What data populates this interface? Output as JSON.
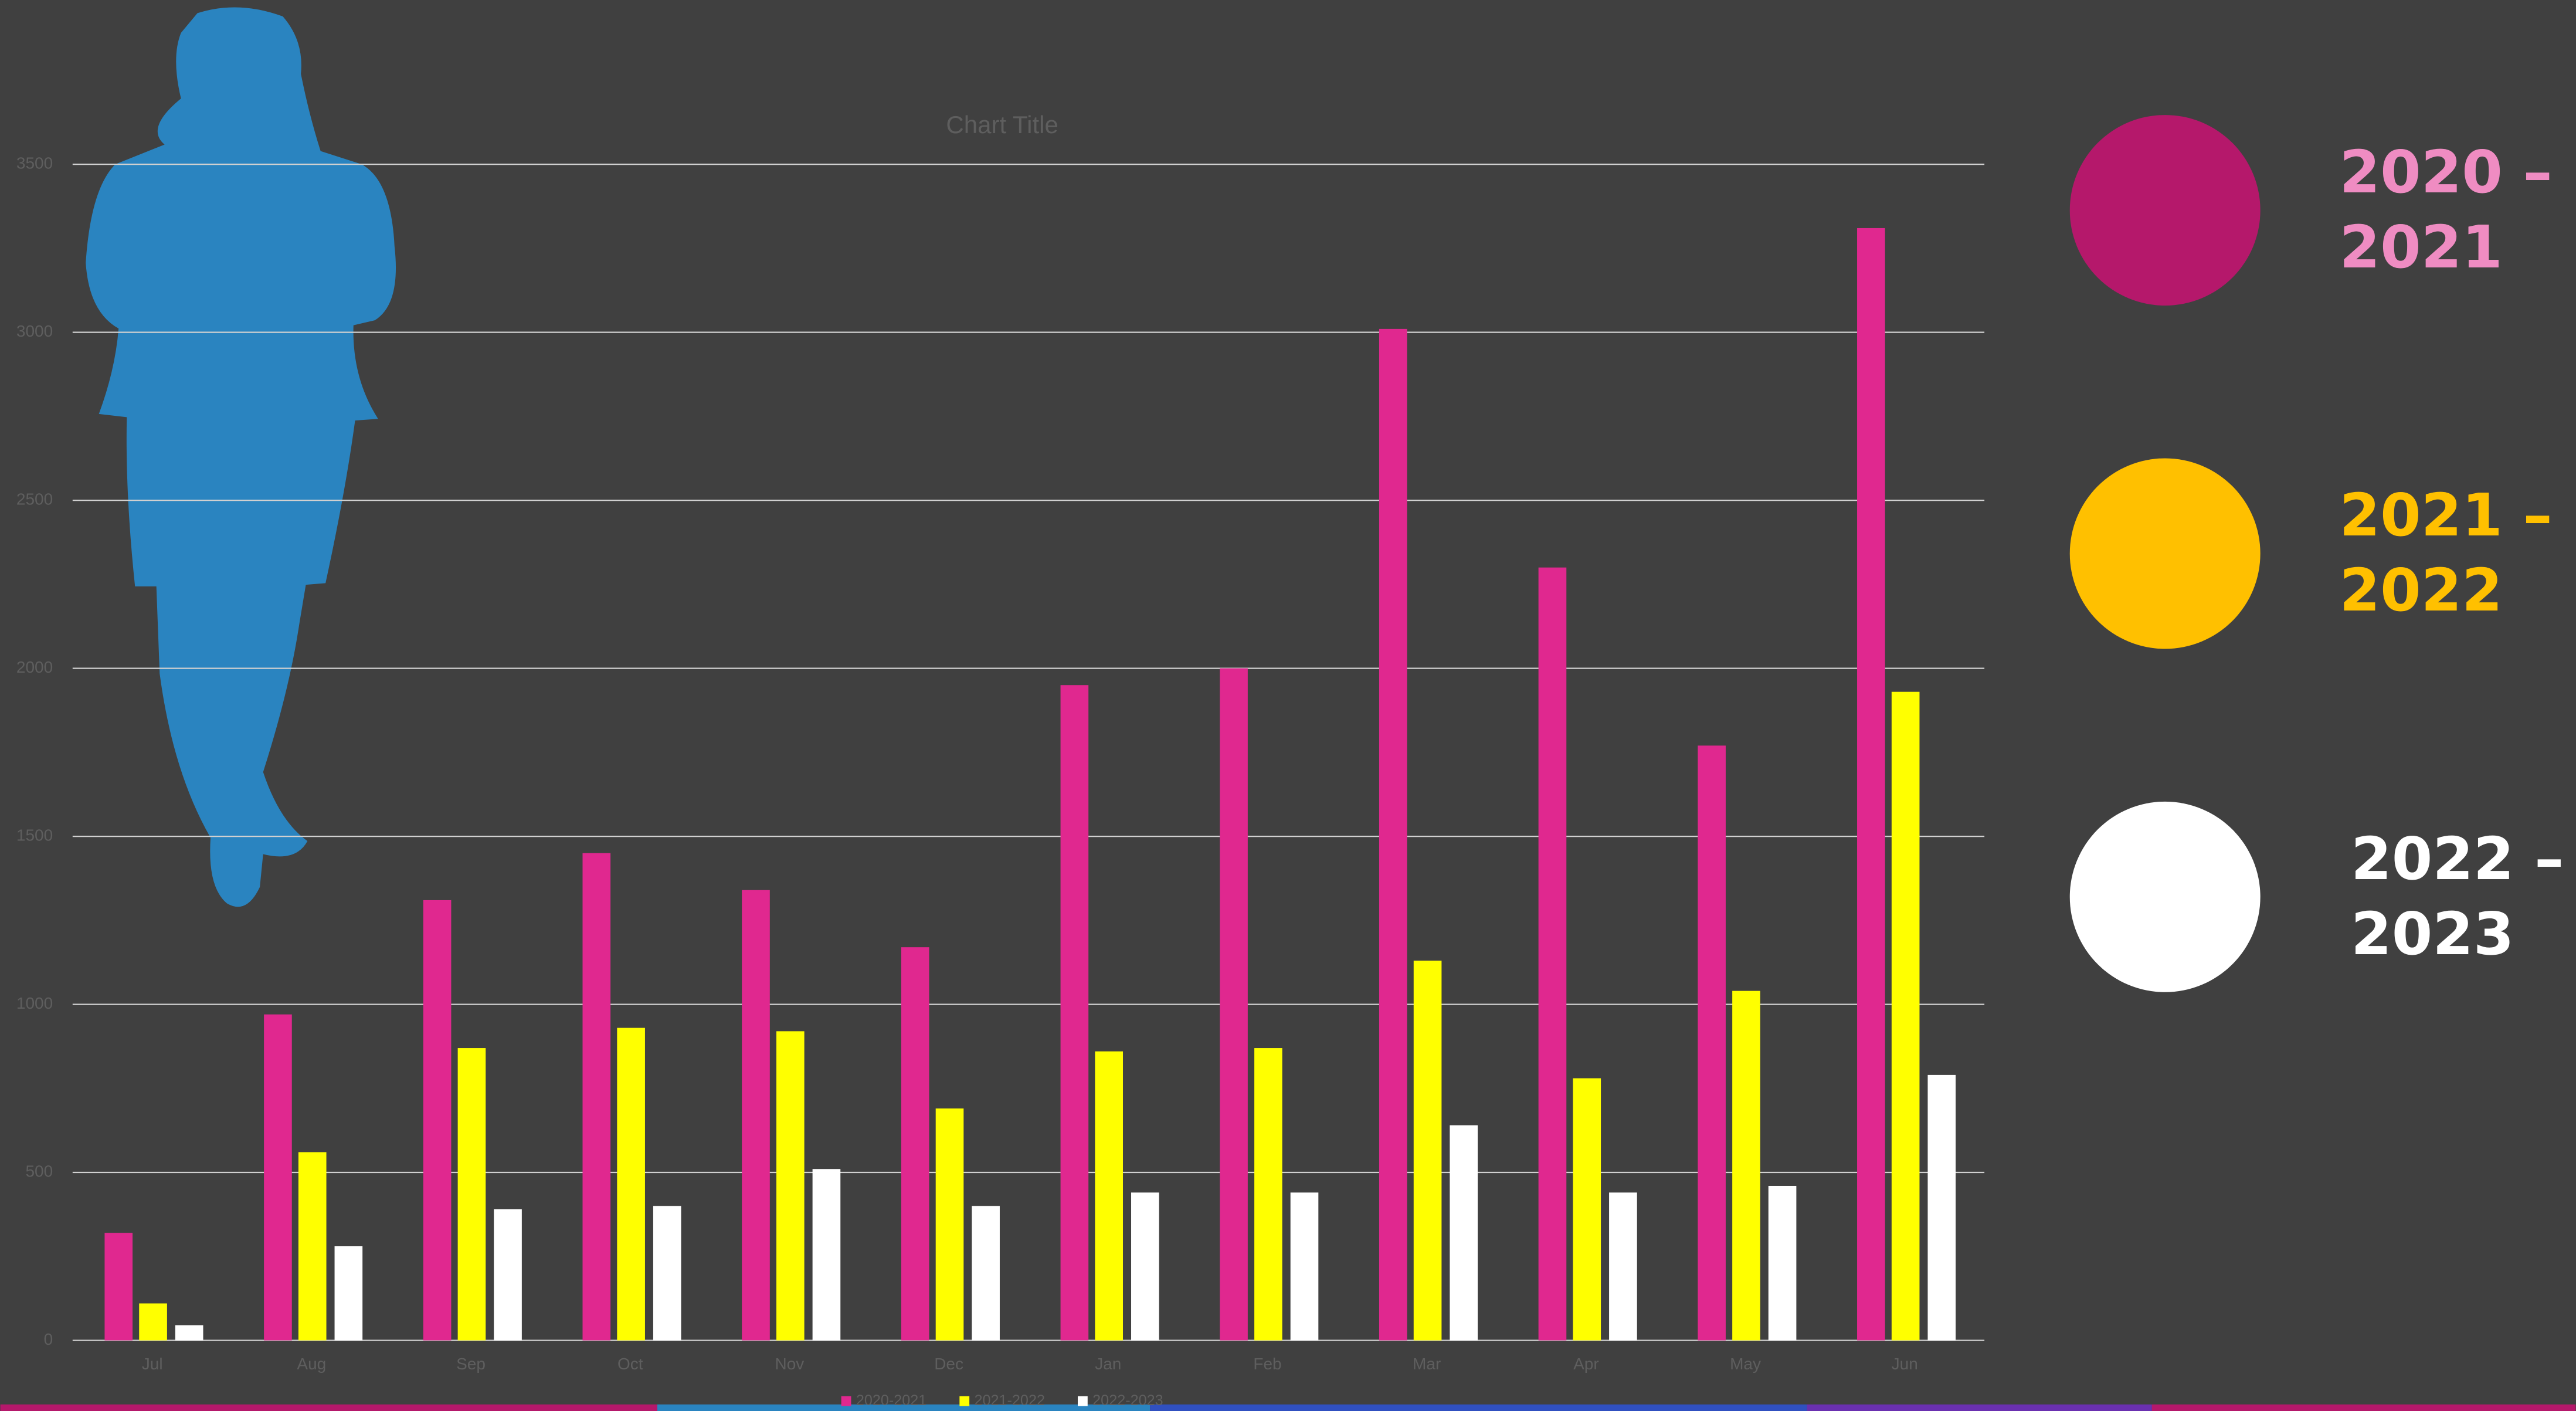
{
  "chart_data": {
    "type": "bar",
    "title": "Chart Title",
    "categories": [
      "Jul",
      "Aug",
      "Sep",
      "Oct",
      "Nov",
      "Dec",
      "Jan",
      "Feb",
      "Mar",
      "Apr",
      "May",
      "Jun"
    ],
    "series": [
      {
        "name": "2020-2021",
        "color": "#e0288f",
        "values": [
          320,
          970,
          1310,
          1450,
          1340,
          1170,
          1950,
          2000,
          3010,
          2300,
          1770,
          3310
        ]
      },
      {
        "name": "2021-2022",
        "color": "#ffff00",
        "values": [
          110,
          560,
          870,
          930,
          920,
          690,
          860,
          870,
          1130,
          780,
          1040,
          1930
        ]
      },
      {
        "name": "2022-2023",
        "color": "#ffffff",
        "values": [
          45,
          280,
          390,
          400,
          510,
          400,
          440,
          440,
          640,
          440,
          460,
          790
        ]
      }
    ],
    "ylim": [
      0,
      3500
    ],
    "yticks": [
      0,
      500,
      1000,
      1500,
      2000,
      2500,
      3000,
      3500
    ],
    "grid": true,
    "legend": "bottom",
    "annotations": [
      {
        "text": "2020 – 2021",
        "text_color": "#ef8cc2",
        "circle_color": "#b5186b"
      },
      {
        "text": "2021 – 2022",
        "text_color": "#ffc000",
        "circle_color": "#ffc000"
      },
      {
        "text": "2022 – 2023",
        "text_color": "#ffffff",
        "circle_color": "#ffffff"
      }
    ]
  }
}
